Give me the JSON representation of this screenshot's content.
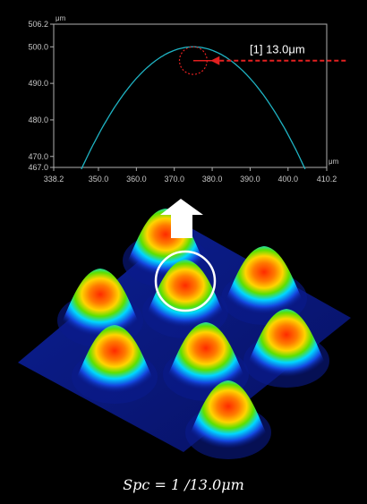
{
  "profile_plot": {
    "x_unit": "μm",
    "y_unit": "μm",
    "xlim": [
      338.2,
      410.2
    ],
    "ylim": [
      467.0,
      506.2
    ],
    "x_tick_labels": [
      "338.2",
      "350.0",
      "360.0",
      "370.0",
      "380.0",
      "390.0",
      "400.0",
      "410.2"
    ],
    "y_tick_labels": [
      "506.2",
      "500.0",
      "490.0",
      "480.0",
      "470.0",
      "467.0"
    ],
    "profile_color": "#1fb3c3",
    "circle_color": "#e22020",
    "peak": {
      "x": 375.0,
      "y": 500.0
    },
    "radius_um": 13.0,
    "annotation_label": "[1] 13.0μm"
  },
  "arrow_color": "#ffffff",
  "surface": {
    "base_color": "#0a1a8c",
    "peak_count": 8
  },
  "formula": "Spc = 1 /13.0μm"
}
